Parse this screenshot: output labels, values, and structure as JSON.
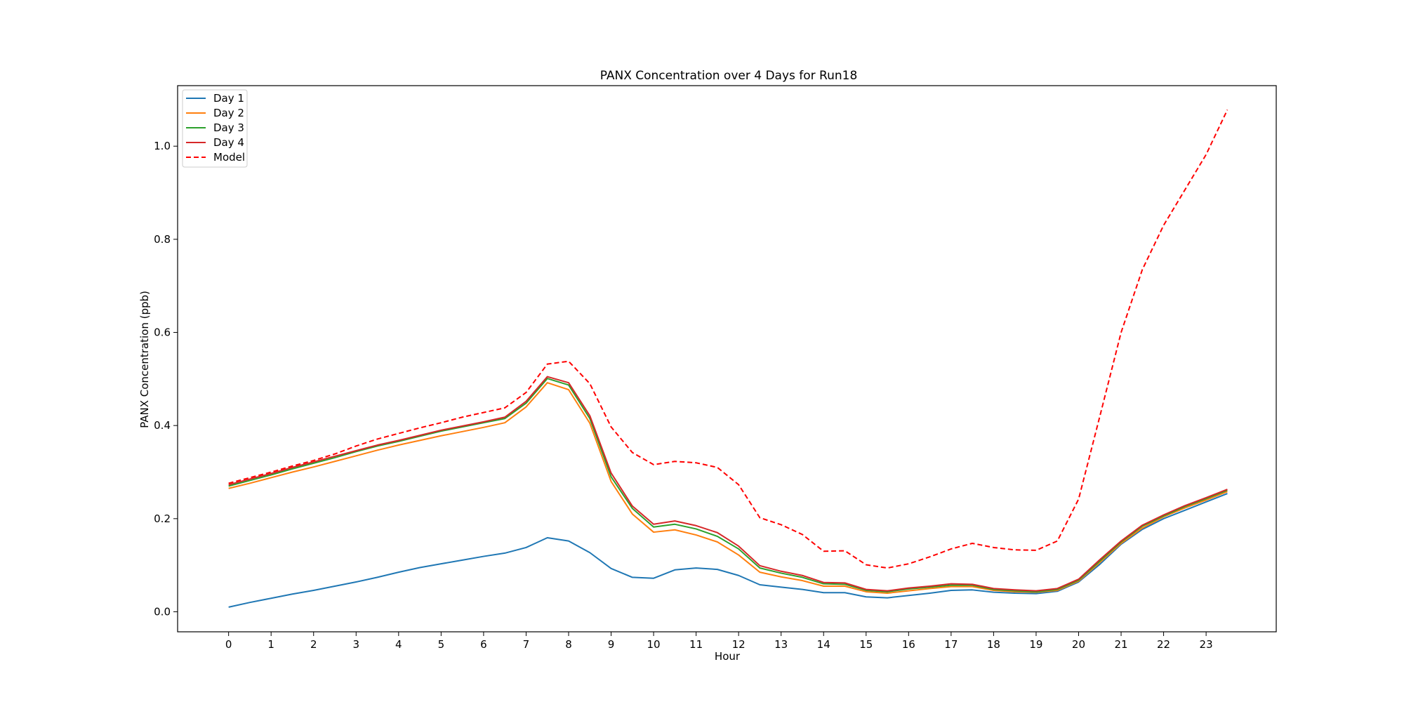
{
  "chart_data": {
    "type": "line",
    "title": "PANX Concentration over 4 Days for Run18",
    "xlabel": "Hour",
    "ylabel": "PANX Concentration (ppb)",
    "xlim": [
      -1.2,
      24.65
    ],
    "ylim": [
      -0.043,
      1.13
    ],
    "xticks": [
      0,
      1,
      2,
      3,
      4,
      5,
      6,
      7,
      8,
      9,
      10,
      11,
      12,
      13,
      14,
      15,
      16,
      17,
      18,
      19,
      20,
      21,
      22,
      23
    ],
    "yticks": [
      0.0,
      0.2,
      0.4,
      0.6,
      0.8,
      1.0
    ],
    "ytick_labels": [
      "0.0",
      "0.2",
      "0.4",
      "0.6",
      "0.8",
      "1.0"
    ],
    "grid": false,
    "legend_position": "top-left",
    "x": [
      0,
      0.5,
      1,
      1.5,
      2,
      2.5,
      3,
      3.5,
      4,
      4.5,
      5,
      5.5,
      6,
      6.5,
      7,
      7.5,
      8,
      8.5,
      9,
      9.5,
      10,
      10.5,
      11,
      11.5,
      12,
      12.5,
      13,
      13.5,
      14,
      14.5,
      15,
      15.5,
      16,
      16.5,
      17,
      17.5,
      18,
      18.5,
      19,
      19.5,
      20,
      20.5,
      21,
      21.5,
      22,
      22.5,
      23,
      23.5
    ],
    "series": [
      {
        "name": "Day 1",
        "color": "#1f77b4",
        "style": "solid",
        "values": [
          0.01,
          0.02,
          0.029,
          0.038,
          0.046,
          0.055,
          0.064,
          0.074,
          0.085,
          0.095,
          0.103,
          0.111,
          0.119,
          0.126,
          0.138,
          0.159,
          0.152,
          0.127,
          0.093,
          0.074,
          0.072,
          0.09,
          0.094,
          0.091,
          0.078,
          0.058,
          0.053,
          0.048,
          0.041,
          0.041,
          0.032,
          0.03,
          0.035,
          0.04,
          0.046,
          0.047,
          0.042,
          0.04,
          0.039,
          0.044,
          0.064,
          0.102,
          0.145,
          0.177,
          0.2,
          0.218,
          0.236,
          0.254
        ]
      },
      {
        "name": "Day 2",
        "color": "#ff7f0e",
        "style": "solid",
        "values": [
          0.265,
          0.276,
          0.288,
          0.3,
          0.311,
          0.323,
          0.335,
          0.347,
          0.358,
          0.368,
          0.378,
          0.387,
          0.396,
          0.406,
          0.44,
          0.492,
          0.477,
          0.405,
          0.28,
          0.21,
          0.171,
          0.176,
          0.165,
          0.15,
          0.122,
          0.085,
          0.075,
          0.067,
          0.055,
          0.055,
          0.043,
          0.04,
          0.045,
          0.05,
          0.054,
          0.054,
          0.046,
          0.043,
          0.042,
          0.046,
          0.066,
          0.106,
          0.147,
          0.18,
          0.204,
          0.223,
          0.24,
          0.258
        ]
      },
      {
        "name": "Day 3",
        "color": "#2ca02c",
        "style": "solid",
        "values": [
          0.27,
          0.282,
          0.294,
          0.307,
          0.319,
          0.331,
          0.344,
          0.356,
          0.366,
          0.377,
          0.388,
          0.397,
          0.406,
          0.415,
          0.448,
          0.501,
          0.487,
          0.415,
          0.29,
          0.222,
          0.182,
          0.188,
          0.178,
          0.162,
          0.135,
          0.094,
          0.083,
          0.074,
          0.06,
          0.059,
          0.046,
          0.043,
          0.049,
          0.053,
          0.057,
          0.057,
          0.048,
          0.045,
          0.043,
          0.048,
          0.068,
          0.109,
          0.15,
          0.184,
          0.206,
          0.226,
          0.243,
          0.261
        ]
      },
      {
        "name": "Day 4",
        "color": "#d62728",
        "style": "solid",
        "values": [
          0.273,
          0.285,
          0.297,
          0.31,
          0.322,
          0.334,
          0.346,
          0.358,
          0.368,
          0.379,
          0.39,
          0.399,
          0.408,
          0.418,
          0.452,
          0.505,
          0.492,
          0.421,
          0.298,
          0.227,
          0.188,
          0.195,
          0.185,
          0.17,
          0.141,
          0.099,
          0.087,
          0.078,
          0.063,
          0.062,
          0.048,
          0.045,
          0.051,
          0.055,
          0.06,
          0.059,
          0.05,
          0.047,
          0.045,
          0.05,
          0.07,
          0.112,
          0.152,
          0.186,
          0.208,
          0.228,
          0.245,
          0.263
        ]
      },
      {
        "name": "Model",
        "color": "#ff0000",
        "style": "dashed",
        "values": [
          0.276,
          0.288,
          0.3,
          0.313,
          0.325,
          0.339,
          0.356,
          0.371,
          0.383,
          0.395,
          0.406,
          0.418,
          0.428,
          0.438,
          0.471,
          0.532,
          0.538,
          0.49,
          0.397,
          0.342,
          0.316,
          0.323,
          0.32,
          0.31,
          0.273,
          0.202,
          0.187,
          0.166,
          0.13,
          0.131,
          0.101,
          0.094,
          0.103,
          0.118,
          0.135,
          0.147,
          0.138,
          0.133,
          0.132,
          0.152,
          0.242,
          0.42,
          0.6,
          0.735,
          0.83,
          0.906,
          0.982,
          1.078
        ]
      }
    ]
  }
}
